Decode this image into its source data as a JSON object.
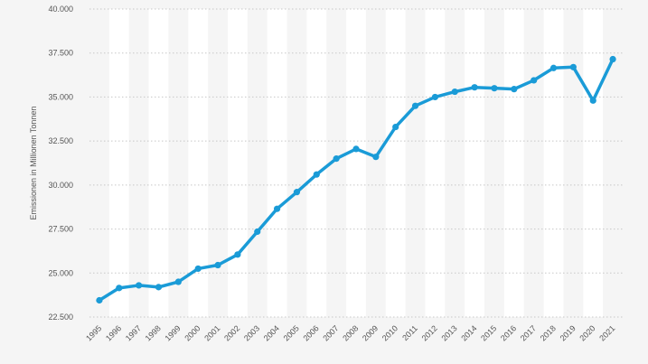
{
  "chart_data": {
    "type": "line",
    "title": "",
    "xlabel": "",
    "ylabel": "Emissionen in Millionen Tonnen",
    "categories": [
      "1995",
      "1996",
      "1997",
      "1998",
      "1999",
      "2000",
      "2001",
      "2002",
      "2003",
      "2004",
      "2005",
      "2006",
      "2007",
      "2008",
      "2009",
      "2010",
      "2011",
      "2012",
      "2013",
      "2014",
      "2015",
      "2016",
      "2017",
      "2018",
      "2019",
      "2020",
      "2021"
    ],
    "series": [
      {
        "values": [
          23450,
          24150,
          24300,
          24200,
          24500,
          25250,
          25450,
          26050,
          27350,
          28650,
          29600,
          30600,
          31500,
          32050,
          31600,
          33300,
          34500,
          35000,
          35300,
          35550,
          35500,
          35450,
          35950,
          36650,
          36700,
          34800,
          37150
        ]
      }
    ],
    "y_ticks": [
      "40.000",
      "37.500",
      "35.000",
      "32.500",
      "30.000",
      "27.500",
      "25.000",
      "22.500"
    ],
    "y_tick_values": [
      40000,
      37500,
      35000,
      32500,
      30000,
      27500,
      25000,
      22500
    ],
    "ylim": [
      22500,
      40000
    ],
    "grid": true,
    "legend": "none",
    "colors": {
      "line": "#1a9bd7",
      "grid": "#c8c8c8",
      "band": "#ffffff",
      "background": "#f5f5f5"
    }
  }
}
